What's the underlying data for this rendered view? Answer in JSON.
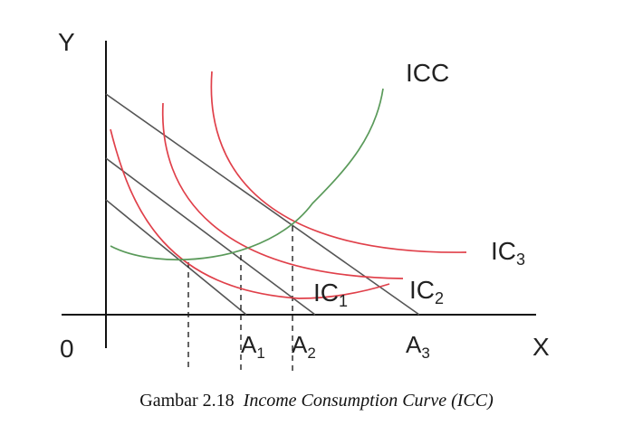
{
  "axes": {
    "y_label": "Y",
    "x_label": "X",
    "origin_label": "0"
  },
  "curve_labels": {
    "icc": "ICC",
    "ic1": {
      "base": "IC",
      "sub": "1"
    },
    "ic2": {
      "base": "IC",
      "sub": "2"
    },
    "ic3": {
      "base": "IC",
      "sub": "3"
    }
  },
  "x_markers": {
    "a1": {
      "base": "A",
      "sub": "1"
    },
    "a2": {
      "base": "A",
      "sub": "2"
    },
    "a3": {
      "base": "A",
      "sub": "3"
    }
  },
  "caption": {
    "prefix": "Gambar 2.18",
    "title": "Income Consumption Curve (ICC)"
  },
  "colors": {
    "budget_line": "#555555",
    "indifference_curve": "#e0404a",
    "icc_curve": "#5a9a5a",
    "axis": "#111111"
  }
}
